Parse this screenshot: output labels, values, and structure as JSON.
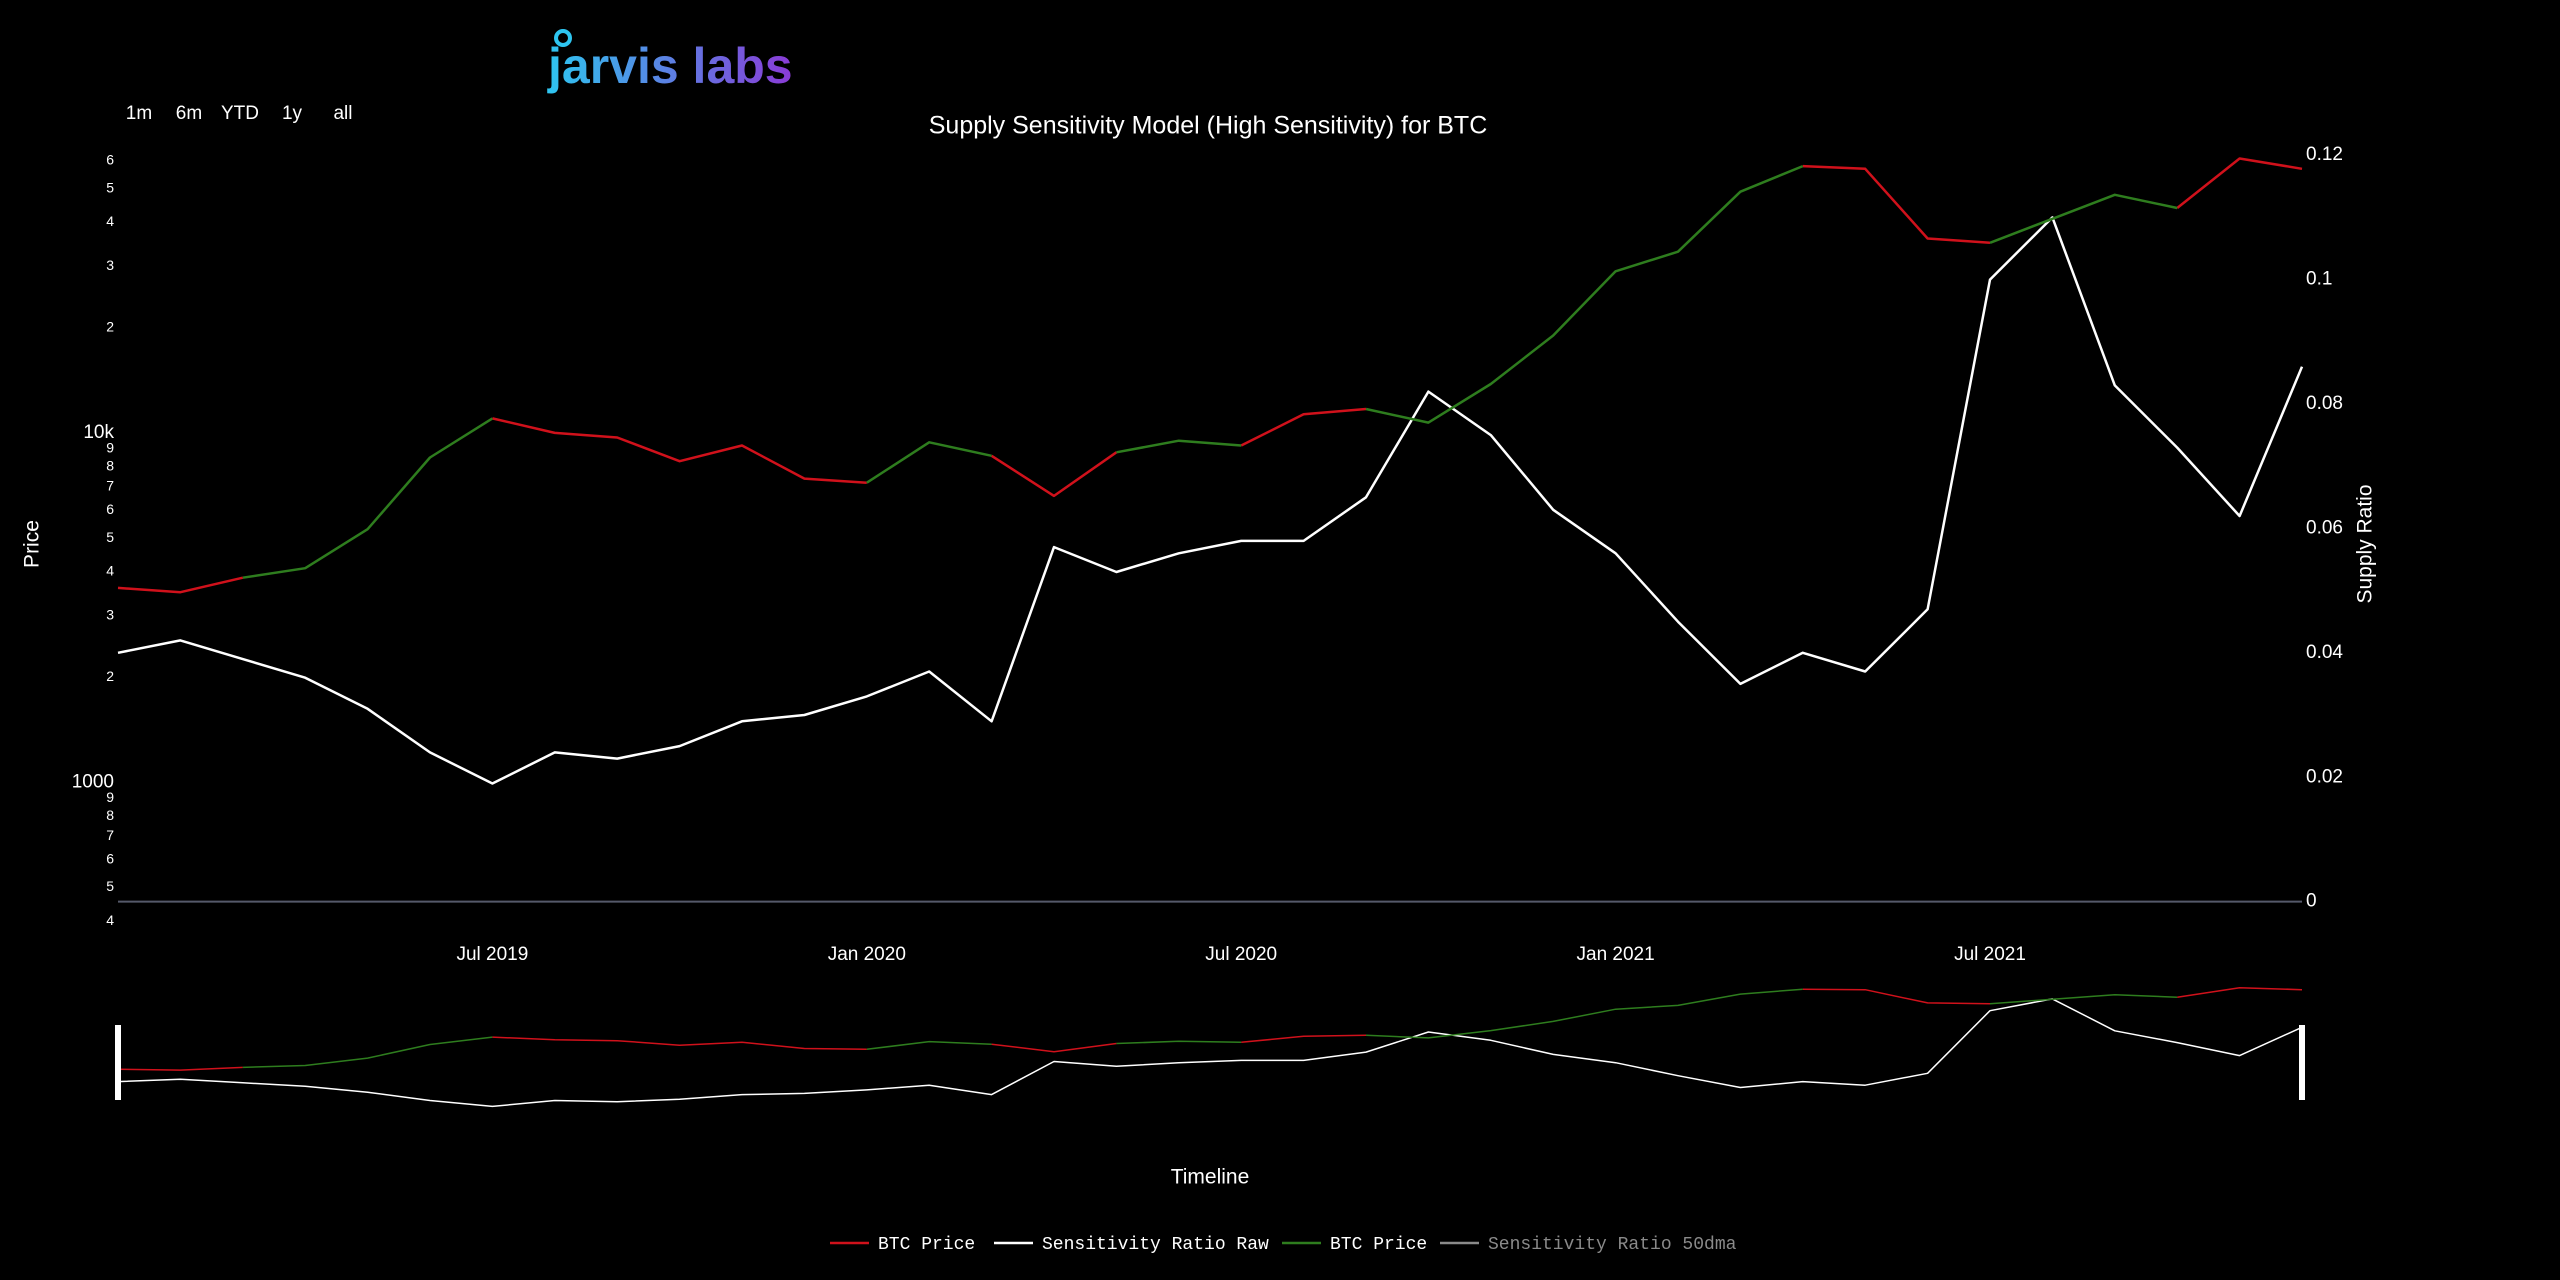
{
  "logo": "jarvis labs",
  "range_buttons": [
    "1m",
    "6m",
    "YTD",
    "1y",
    "all"
  ],
  "chart_data": {
    "type": "line",
    "title": "Supply Sensitivity Model (High Sensitivity) for BTC",
    "y_label": "Price",
    "y2_label": "Supply Ratio",
    "navigator_label": "Timeline",
    "log_y": true,
    "grid": false,
    "legend": "bottom",
    "x": [
      "2019-01",
      "2019-02",
      "2019-03",
      "2019-04",
      "2019-05",
      "2019-06",
      "2019-07",
      "2019-08",
      "2019-09",
      "2019-10",
      "2019-11",
      "2019-12",
      "2020-01",
      "2020-02",
      "2020-03",
      "2020-04",
      "2020-05",
      "2020-06",
      "2020-07",
      "2020-08",
      "2020-09",
      "2020-10",
      "2020-11",
      "2020-12",
      "2021-01",
      "2021-02",
      "2021-03",
      "2021-04",
      "2021-05",
      "2021-06",
      "2021-07",
      "2021-08",
      "2021-09",
      "2021-10",
      "2021-11",
      "2021-12"
    ],
    "xlim": [
      "2019-01",
      "2021-12"
    ],
    "xticks": [
      {
        "value": "2019-07",
        "label": "Jul 2019"
      },
      {
        "value": "2020-01",
        "label": "Jan 2020"
      },
      {
        "value": "2020-07",
        "label": "Jul 2020"
      },
      {
        "value": "2021-01",
        "label": "Jan 2021"
      },
      {
        "value": "2021-07",
        "label": "Jul 2021"
      }
    ],
    "ylim": [
      368,
      67100
    ],
    "yticks": [
      {
        "value": 400,
        "label": "4"
      },
      {
        "value": 500,
        "label": "5"
      },
      {
        "value": 600,
        "label": "6"
      },
      {
        "value": 700,
        "label": "7"
      },
      {
        "value": 800,
        "label": "8"
      },
      {
        "value": 900,
        "label": "9"
      },
      1000,
      {
        "value": 2000,
        "label": "2"
      },
      {
        "value": 3000,
        "label": "3"
      },
      {
        "value": 4000,
        "label": "4"
      },
      {
        "value": 5000,
        "label": "5"
      },
      {
        "value": 6000,
        "label": "6"
      },
      {
        "value": 7000,
        "label": "7"
      },
      {
        "value": 8000,
        "label": "8"
      },
      {
        "value": 9000,
        "label": "9"
      },
      {
        "value": 10000,
        "label": "10k"
      },
      {
        "value": 20000,
        "label": "2"
      },
      {
        "value": 30000,
        "label": "3"
      },
      {
        "value": 40000,
        "label": "4"
      },
      {
        "value": 50000,
        "label": "5"
      },
      {
        "value": 60000,
        "label": "6"
      }
    ],
    "y2lim": [
      -0.0052,
      0.1218
    ],
    "y2ticks": [
      0,
      0.02,
      0.04,
      0.06,
      0.08,
      0.1,
      0.12
    ],
    "series": [
      {
        "name": "BTC Price",
        "color": "#d0111b",
        "values": [
          3600,
          3500,
          3850,
          null,
          null,
          null,
          11000,
          10000,
          9700,
          8300,
          9200,
          7400,
          7200,
          null,
          8600,
          6600,
          8800,
          null,
          9200,
          11300,
          11700,
          null,
          null,
          null,
          null,
          null,
          null,
          58000,
          57000,
          36000,
          35000,
          null,
          null,
          44000,
          61000,
          57000
        ]
      },
      {
        "name": "Sensitivity Ratio Raw",
        "color": "#ffffff",
        "axis": "y2",
        "values": [
          0.04,
          0.042,
          0.039,
          0.036,
          0.031,
          0.024,
          0.019,
          0.024,
          0.023,
          0.025,
          0.029,
          0.03,
          0.033,
          0.037,
          0.029,
          0.057,
          0.053,
          0.056,
          0.058,
          0.058,
          0.065,
          0.082,
          0.075,
          0.063,
          0.056,
          0.045,
          0.035,
          0.04,
          0.037,
          0.047,
          0.1,
          0.11,
          0.083,
          0.073,
          0.062,
          0.086
        ]
      },
      {
        "name": "BTC Price",
        "color": "#2e7d1e",
        "values": [
          null,
          null,
          3850,
          4100,
          5300,
          8500,
          11000,
          null,
          null,
          null,
          null,
          null,
          7200,
          9400,
          8600,
          null,
          8800,
          9500,
          9200,
          null,
          11700,
          10700,
          13800,
          19000,
          29000,
          33000,
          49000,
          58000,
          null,
          null,
          35000,
          41000,
          48000,
          44000,
          null,
          null
        ]
      },
      {
        "name": "Sensitivity Ratio 50dma",
        "color": "#8a8a8a",
        "axis": "y2",
        "values": [
          null,
          null,
          null,
          null,
          null,
          null,
          null,
          null,
          null,
          null,
          null,
          null,
          null,
          null,
          null,
          null,
          null,
          null,
          null,
          null,
          null,
          null,
          null,
          null,
          null,
          null,
          null,
          null,
          null,
          null,
          null,
          null,
          null,
          null,
          null,
          null
        ]
      }
    ]
  }
}
